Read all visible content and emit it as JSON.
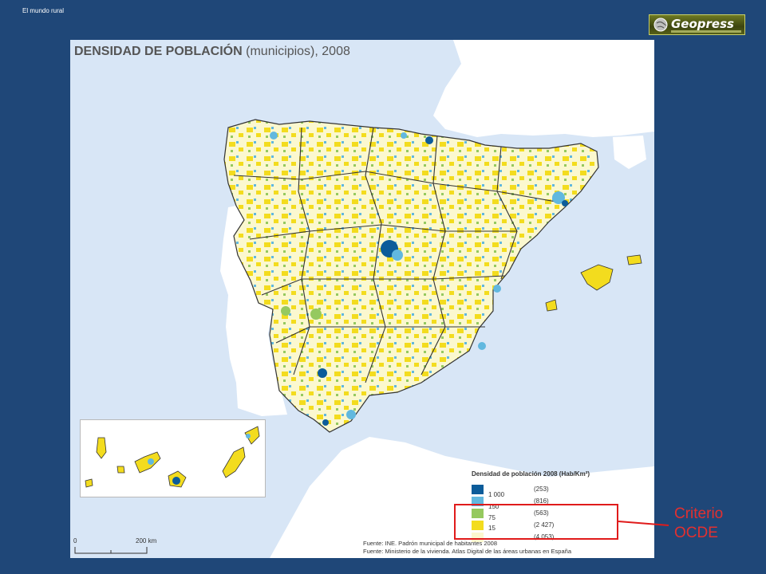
{
  "slide": {
    "label": "El mundo rural"
  },
  "logo": {
    "text": "Geopress",
    "icon": "globe-icon"
  },
  "map": {
    "title_main": "DENSIDAD DE POBLACIÓN",
    "title_rest": " (municipios), 2008",
    "legend": {
      "title": "Densidad de población 2008 (Hab/Km²)",
      "classes": [
        {
          "threshold": "1 000",
          "count": "(253)",
          "color": "#0c5c9a"
        },
        {
          "threshold": "150",
          "count": "(816)",
          "color": "#61b8df"
        },
        {
          "threshold": "75",
          "count": "(563)",
          "color": "#95c95f"
        },
        {
          "threshold": "15",
          "count": "(2 427)",
          "color": "#f3dc1e"
        },
        {
          "threshold": "",
          "count": "(4 053)",
          "color": "#fbf8cf"
        }
      ]
    },
    "scale": {
      "start": "0",
      "end": "200 km"
    },
    "source_1": "Fuente: INE. Padrón municipal de habitantes 2008",
    "source_2": "Fuente: Ministerio de la vivienda. Atlas Digital de las áreas urbanas en España",
    "colors": {
      "sea": "#d8e6f6",
      "other_land": "#ffffff",
      "borders": "#333333"
    }
  },
  "annotation": {
    "line1": "Criterio",
    "line2": "OCDE",
    "color": "#e23030"
  }
}
